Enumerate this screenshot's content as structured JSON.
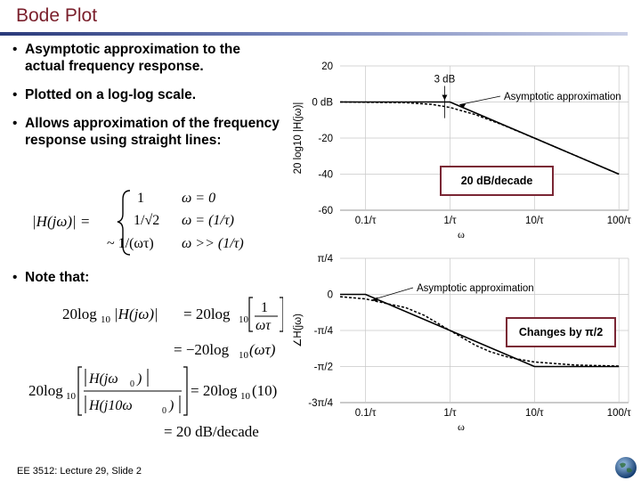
{
  "slide": {
    "title": "Bode Plot",
    "bullets": [
      "Asymptotic approximation to the actual frequency response.",
      "Plotted on a log-log scale.",
      "Allows approximation of the frequency response using straight lines:"
    ],
    "note": "Note that:",
    "footer": "EE 3512: Lecture 29, Slide 2",
    "logo": "globe-icon"
  },
  "colors": {
    "title": "#7a1f2b",
    "rule": "#2a3a7a",
    "callout_border": "#7a2634"
  },
  "equations": {
    "piecewise": {
      "lhs": "|H(jω)| =",
      "cases": [
        {
          "value": "1",
          "condition": "ω = 0"
        },
        {
          "value": "1/√2",
          "condition": "ω = (1/τ)"
        },
        {
          "value": "~ 1/(ωτ)",
          "condition": "ω >> (1/τ)"
        }
      ]
    },
    "eq1": {
      "lhs": "20log",
      "sub": "10",
      "arg": "|H(jω)|",
      "eq": "= 20log",
      "frac_num": "1",
      "frac_den": "ωτ",
      "line2": "= −20log",
      "line2_arg": "(ωτ)"
    },
    "eq2": {
      "lhs": "20log",
      "sub": "10",
      "num": "H(jω",
      "num_sub": "0",
      "den": "H(j10ω",
      "den_sub": "0",
      "eq": "= 20log",
      "arg": "(10)",
      "result": "= 20 dB/decade"
    }
  },
  "chart_data": [
    {
      "type": "line",
      "title": "",
      "xlabel": "ω",
      "ylabel": "20 log10 |H(jω)|",
      "x_ticks": [
        "0.1/τ",
        "1/τ",
        "10/τ",
        "100/τ"
      ],
      "y_ticks": [
        "20",
        "0 dB",
        "-20",
        "-40",
        "-60"
      ],
      "ylim": [
        -60,
        20
      ],
      "annotations": [
        "3 dB",
        "Asymptotic approximation"
      ],
      "callout": "20 dB/decade",
      "series": [
        {
          "points": [
            [
              0.05,
              0
            ],
            [
              1,
              0
            ],
            [
              100,
              -40
            ]
          ]
        },
        {
          "points": [
            [
              0.05,
              0
            ],
            [
              0.3,
              -0.4
            ],
            [
              0.6,
              -1.3
            ],
            [
              1,
              -3
            ],
            [
              2,
              -7
            ],
            [
              4,
              -12.3
            ],
            [
              10,
              -20
            ],
            [
              100,
              -40
            ]
          ]
        }
      ]
    },
    {
      "type": "line",
      "title": "",
      "xlabel": "ω",
      "ylabel": "∠H(jω)",
      "x_ticks": [
        "0.1/τ",
        "1/τ",
        "10/τ",
        "100/τ"
      ],
      "y_ticks": [
        "π/4",
        "0",
        "-π/4",
        "-π/2",
        "-3π/4"
      ],
      "ylim": [
        -2.356,
        0.785
      ],
      "annotations": [
        "Asymptotic approximation"
      ],
      "callout": "Changes by π/2",
      "series": [
        {
          "points": [
            [
              0.05,
              0
            ],
            [
              0.1,
              0
            ],
            [
              10,
              -1.571
            ],
            [
              100,
              -1.571
            ]
          ]
        },
        {
          "points": [
            [
              0.05,
              -0.05
            ],
            [
              0.1,
              -0.1
            ],
            [
              0.3,
              -0.29
            ],
            [
              0.5,
              -0.46
            ],
            [
              1,
              -0.785
            ],
            [
              2,
              -1.107
            ],
            [
              3,
              -1.249
            ],
            [
              5,
              -1.373
            ],
            [
              10,
              -1.471
            ],
            [
              30,
              -1.538
            ],
            [
              100,
              -1.561
            ]
          ]
        }
      ]
    }
  ]
}
